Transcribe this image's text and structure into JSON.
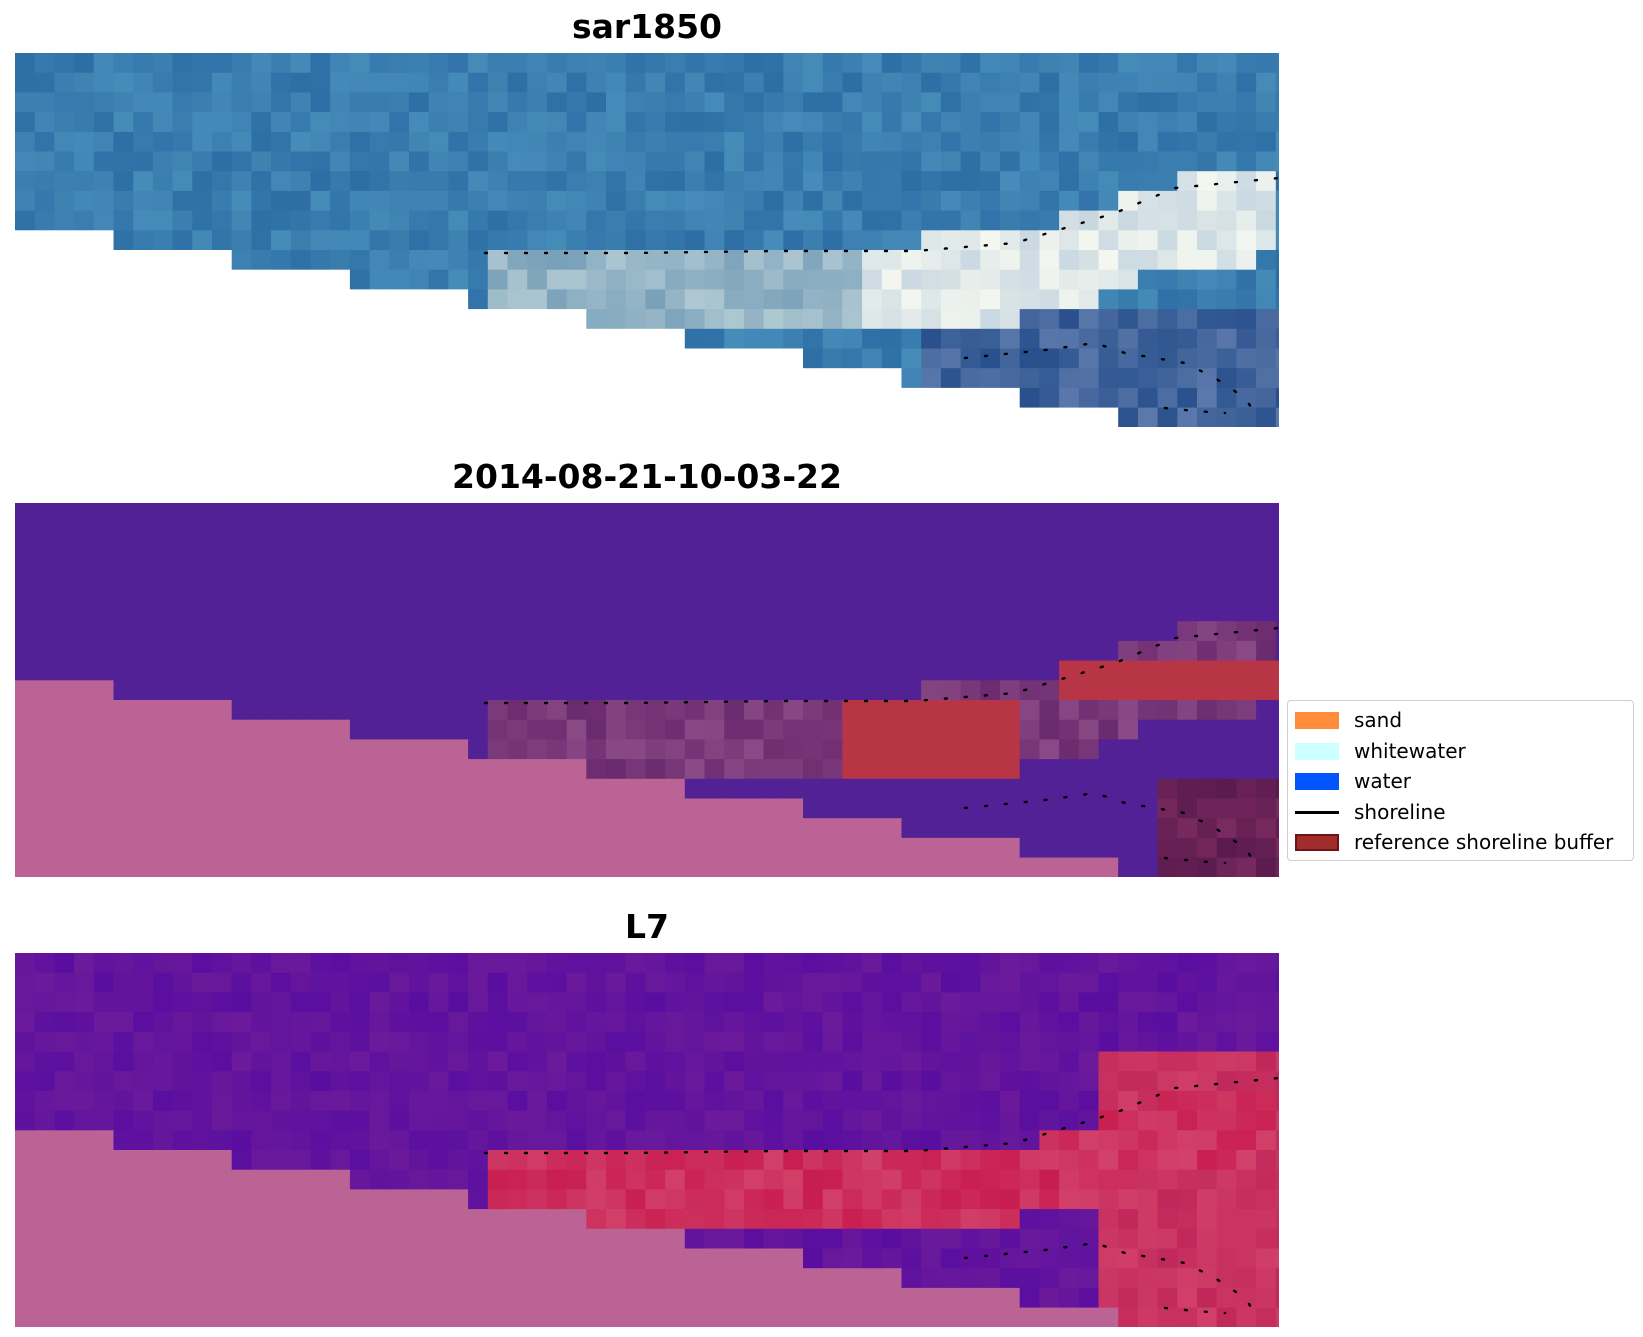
{
  "panels": [
    {
      "title": "sar1850",
      "palette": "rgb"
    },
    {
      "title": "2014-08-21-10-03-22",
      "palette": "classified"
    },
    {
      "title": "L7",
      "palette": "index"
    }
  ],
  "legend": {
    "items": [
      {
        "label": "sand",
        "kind": "patch",
        "color": "#ff8c3a",
        "edge": "#ff8c3a"
      },
      {
        "label": "whitewater",
        "kind": "patch",
        "color": "#ccffff",
        "edge": "#ccffff"
      },
      {
        "label": "water",
        "kind": "patch",
        "color": "#0055ff",
        "edge": "#0055ff"
      },
      {
        "label": "shoreline",
        "kind": "line",
        "color": "#000000"
      },
      {
        "label": "reference shoreline buffer",
        "kind": "patch",
        "color": "#a02c2c",
        "edge": "#6e1414"
      }
    ]
  },
  "colors": {
    "nodata": "#ffffff",
    "ocean_class": "#522196",
    "land_class": "#bb6394",
    "buffer_class": "#b83546",
    "index_water": "#6a1a9a",
    "index_land": "#bb6394",
    "index_beach": "#c81d4f"
  }
}
